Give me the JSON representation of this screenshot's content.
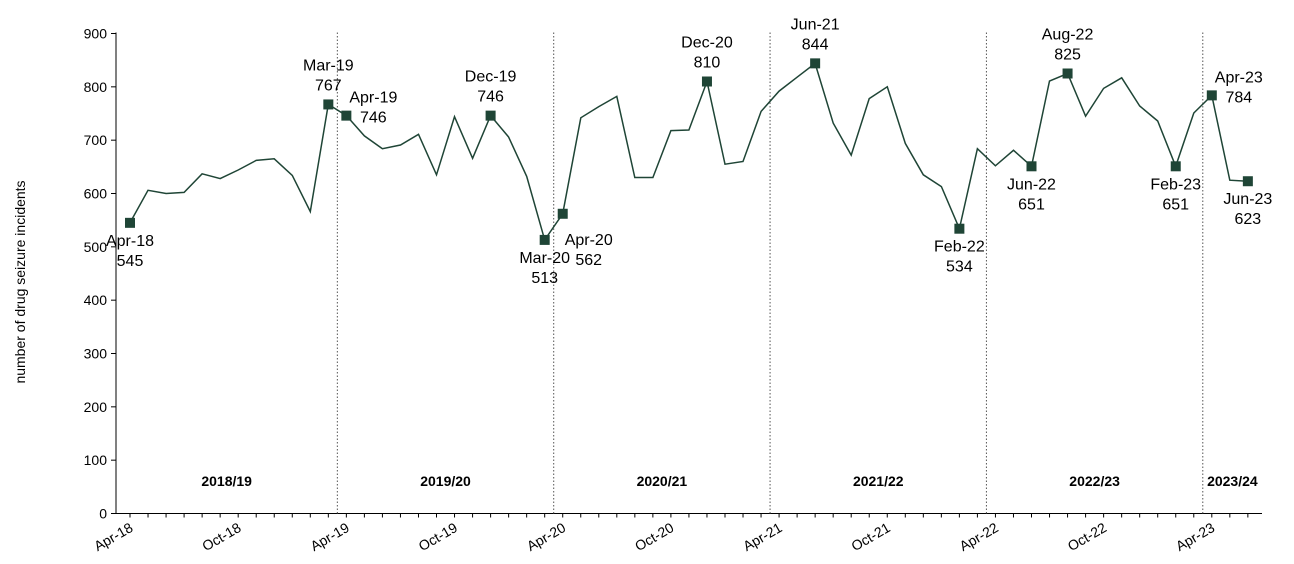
{
  "chart_data": {
    "type": "line",
    "title": "",
    "xlabel": "",
    "ylabel": "number of drug seizure incidents",
    "ylim": [
      0,
      900
    ],
    "yticks": [
      0,
      100,
      200,
      300,
      400,
      500,
      600,
      700,
      800,
      900
    ],
    "xtick_labels": [
      "Apr-18",
      "Oct-18",
      "Apr-19",
      "Oct-19",
      "Apr-20",
      "Oct-20",
      "Apr-21",
      "Oct-21",
      "Apr-22",
      "Oct-22",
      "Apr-23"
    ],
    "line_color": "#1f4536",
    "marker_color": "#1f4536",
    "grid": false,
    "series": [
      {
        "x": [
          "Apr-18",
          "May-18",
          "Jun-18",
          "Jul-18",
          "Aug-18",
          "Sep-18",
          "Oct-18",
          "Nov-18",
          "Dec-18",
          "Jan-19",
          "Feb-19",
          "Mar-19",
          "Apr-19",
          "May-19",
          "Jun-19",
          "Jul-19",
          "Aug-19",
          "Sep-19",
          "Oct-19",
          "Nov-19",
          "Dec-19",
          "Jan-20",
          "Feb-20",
          "Mar-20",
          "Apr-20",
          "May-20",
          "Jun-20",
          "Jul-20",
          "Aug-20",
          "Sep-20",
          "Oct-20",
          "Nov-20",
          "Dec-20",
          "Jan-21",
          "Feb-21",
          "Mar-21",
          "Apr-21",
          "May-21",
          "Jun-21",
          "Jul-21",
          "Aug-21",
          "Sep-21",
          "Oct-21",
          "Nov-21",
          "Dec-21",
          "Jan-22",
          "Feb-22",
          "Mar-22",
          "Apr-22",
          "May-22",
          "Jun-22",
          "Jul-22",
          "Aug-22",
          "Sep-22",
          "Oct-22",
          "Nov-22",
          "Dec-22",
          "Jan-23",
          "Feb-23",
          "Mar-23",
          "Apr-23",
          "May-23",
          "Jun-23"
        ],
        "values": [
          545,
          606,
          600,
          602,
          637,
          628,
          644,
          662,
          665,
          634,
          566,
          767,
          746,
          708,
          684,
          691,
          711,
          635,
          744,
          666,
          746,
          706,
          632,
          513,
          562,
          742,
          763,
          782,
          630,
          630,
          718,
          719,
          810,
          655,
          660,
          754,
          792,
          818,
          844,
          732,
          672,
          778,
          800,
          694,
          635,
          613,
          534,
          684,
          652,
          681,
          651,
          811,
          825,
          745,
          797,
          817,
          764,
          736,
          651,
          751,
          784,
          625,
          623
        ]
      }
    ],
    "annotations": [
      {
        "x": "Apr-18",
        "label": "Apr-18",
        "value": "545",
        "pos": "below"
      },
      {
        "x": "Mar-19",
        "label": "Mar-19",
        "value": "767",
        "pos": "above"
      },
      {
        "x": "Apr-19",
        "label": "Apr-19",
        "value": "746",
        "pos": "above-right"
      },
      {
        "x": "Dec-19",
        "label": "Dec-19",
        "value": "746",
        "pos": "above"
      },
      {
        "x": "Mar-20",
        "label": "Mar-20",
        "value": "513",
        "pos": "below"
      },
      {
        "x": "Apr-20",
        "label": "Apr-20",
        "value": "562",
        "pos": "below-right"
      },
      {
        "x": "Dec-20",
        "label": "Dec-20",
        "value": "810",
        "pos": "above"
      },
      {
        "x": "Jun-21",
        "label": "Jun-21",
        "value": "844",
        "pos": "above"
      },
      {
        "x": "Feb-22",
        "label": "Feb-22",
        "value": "534",
        "pos": "below"
      },
      {
        "x": "Jun-22",
        "label": "Jun-22",
        "value": "651",
        "pos": "below"
      },
      {
        "x": "Aug-22",
        "label": "Aug-22",
        "value": "825",
        "pos": "above"
      },
      {
        "x": "Feb-23",
        "label": "Feb-23",
        "value": "651",
        "pos": "below"
      },
      {
        "x": "Apr-23",
        "label": "Apr-23",
        "value": "784",
        "pos": "above-right"
      },
      {
        "x": "Jun-23",
        "label": "Jun-23",
        "value": "623",
        "pos": "below"
      }
    ],
    "financial_years": [
      {
        "label": "2018/19",
        "start": "Apr-18"
      },
      {
        "label": "2019/20",
        "start": "Apr-19"
      },
      {
        "label": "2020/21",
        "start": "Apr-20"
      },
      {
        "label": "2021/22",
        "start": "Apr-21"
      },
      {
        "label": "2022/23",
        "start": "Apr-22"
      },
      {
        "label": "2023/24",
        "start": "Apr-23"
      }
    ]
  }
}
